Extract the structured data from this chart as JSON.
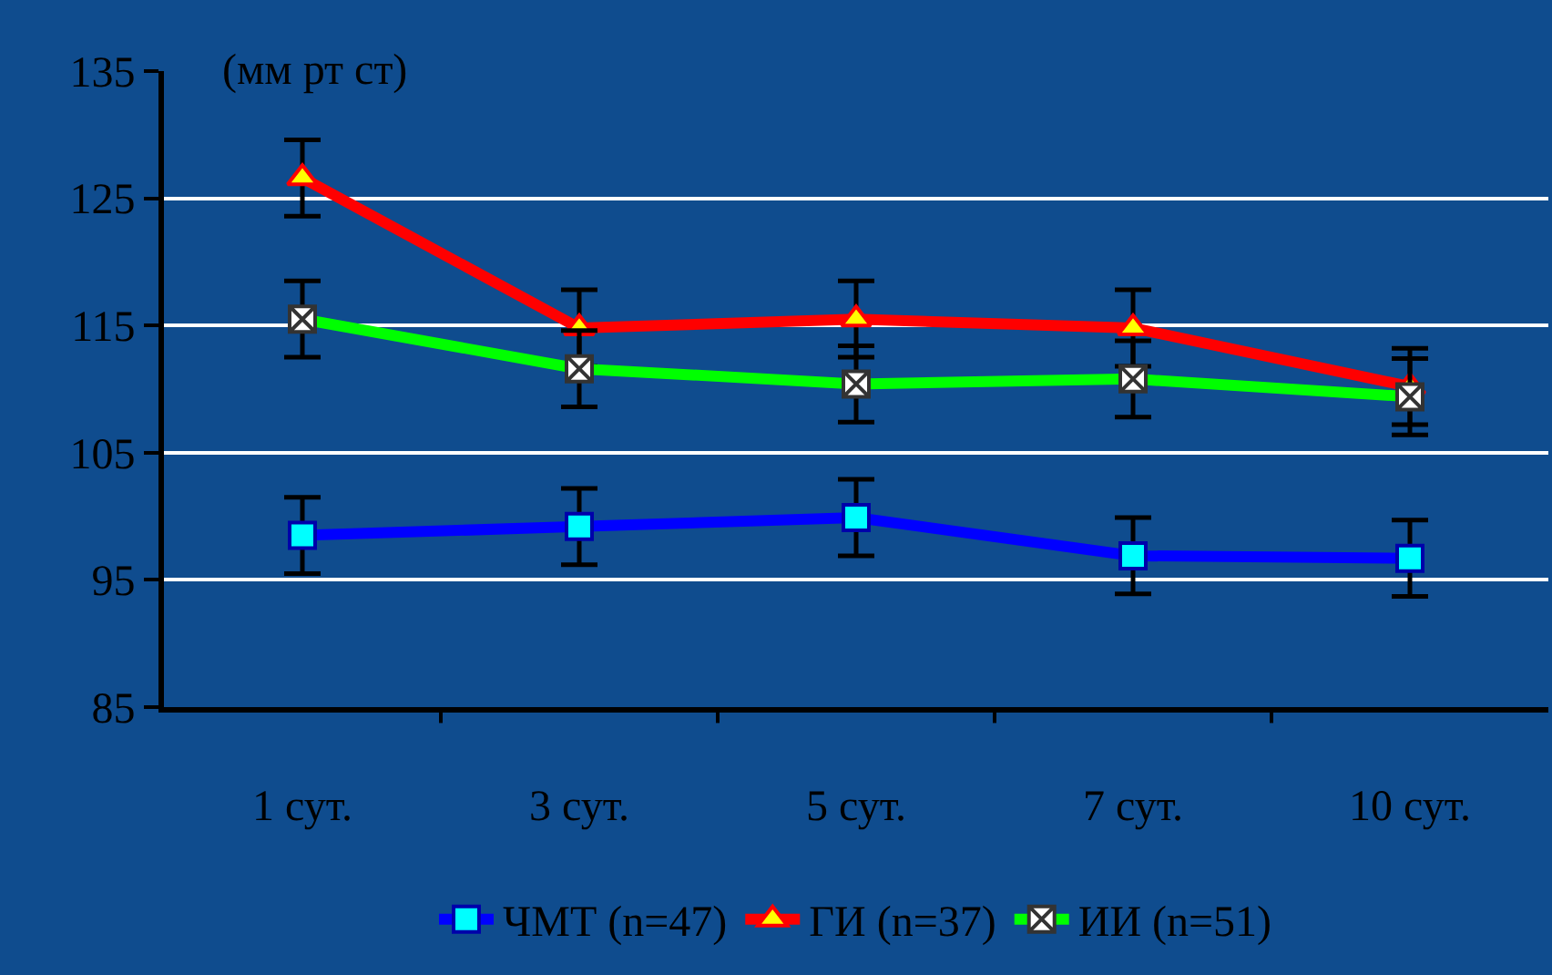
{
  "chart_data": {
    "type": "line",
    "ylabel": "(мм рт ст)",
    "categories": [
      "1 сут.",
      "3 сут.",
      "5 сут.",
      "7 сут.",
      "10 сут."
    ],
    "ylim": [
      85,
      135
    ],
    "yticks": [
      85,
      95,
      105,
      115,
      125,
      135
    ],
    "grid": "y",
    "legend": "bottom",
    "series": [
      {
        "name": "ЧМТ (n=47)",
        "color": "#0000ff",
        "marker": "square",
        "values": [
          98.5,
          99.2,
          99.9,
          96.9,
          96.7
        ],
        "errors": [
          3,
          3,
          3,
          3,
          3
        ]
      },
      {
        "name": "ГИ (n=37)",
        "color": "#ff0000",
        "marker": "triangle",
        "values": [
          126.6,
          114.8,
          115.5,
          114.8,
          110.2
        ],
        "errors": [
          3,
          3,
          3,
          3,
          3
        ]
      },
      {
        "name": "ИИ (n=51)",
        "color": "#00ff00",
        "marker": "cross",
        "values": [
          115.5,
          111.6,
          110.4,
          110.8,
          109.4
        ],
        "errors": [
          3,
          3,
          3,
          3,
          3
        ]
      }
    ]
  }
}
